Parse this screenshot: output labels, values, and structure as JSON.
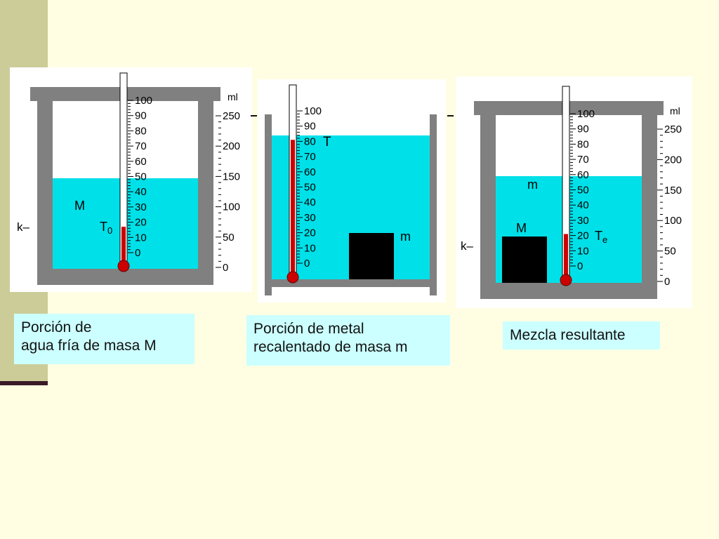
{
  "colors": {
    "background": "#FFFEE3",
    "side_bar": "#CCCC99",
    "side_rule": "#3A1A26",
    "container": "#808080",
    "water": "#00E0E8",
    "mercury": "#CC0000",
    "metal": "#000000",
    "caption_box": "#CCFFFF"
  },
  "thermometer_scale": [
    "100",
    "90",
    "80",
    "70",
    "60",
    "50",
    "40",
    "30",
    "20",
    "10",
    "0"
  ],
  "volume_scale": [
    "250",
    "200",
    "150",
    "100",
    "50",
    "0"
  ],
  "panels": [
    {
      "water_label": "M",
      "temp_label": "T",
      "temp_sub": "0",
      "volume_unit": "ml",
      "constant_label": "k–",
      "water_level_ml": 147,
      "thermometer_reading": 17,
      "caption": [
        "Porción de",
        "agua fría de masa M"
      ]
    },
    {
      "temp_label": "T",
      "metal_label": "m",
      "thermometer_reading": 81,
      "caption": [
        "Porción de metal",
        "recalentado de masa m"
      ]
    },
    {
      "water_label_top": "m",
      "metal_label": "M",
      "temp_label": "T",
      "temp_sub": "e",
      "volume_unit": "ml",
      "constant_label": "k–",
      "water_level_ml": 176,
      "thermometer_reading": 21,
      "caption": [
        "Mezcla resultante"
      ]
    }
  ]
}
